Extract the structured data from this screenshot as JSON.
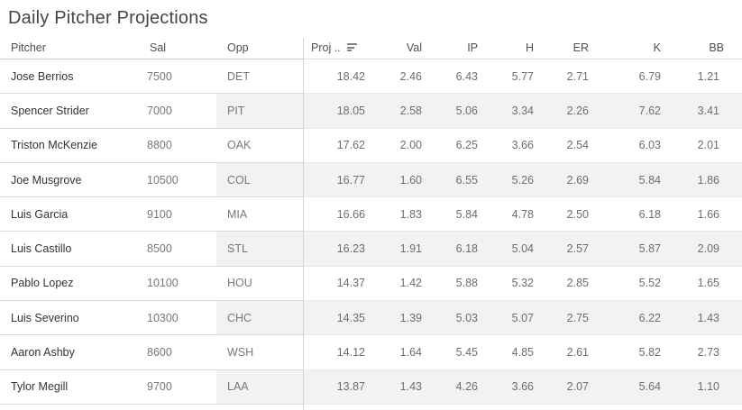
{
  "title": "Daily Pitcher Projections",
  "table": {
    "columns": [
      {
        "key": "pitcher",
        "label": "Pitcher"
      },
      {
        "key": "sal",
        "label": "Sal"
      },
      {
        "key": "opp",
        "label": "Opp"
      },
      {
        "key": "proj",
        "label": "Proj ..",
        "sorted": "descending"
      },
      {
        "key": "val",
        "label": "Val"
      },
      {
        "key": "ip",
        "label": "IP"
      },
      {
        "key": "h",
        "label": "H"
      },
      {
        "key": "er",
        "label": "ER"
      },
      {
        "key": "k",
        "label": "K"
      },
      {
        "key": "bb",
        "label": "BB"
      }
    ],
    "rows": [
      {
        "pitcher": "Jose Berrios",
        "sal": "7500",
        "opp": "DET",
        "proj": "18.42",
        "val": "2.46",
        "ip": "6.43",
        "h": "5.77",
        "er": "2.71",
        "k": "6.79",
        "bb": "1.21"
      },
      {
        "pitcher": "Spencer Strider",
        "sal": "7000",
        "opp": "PIT",
        "proj": "18.05",
        "val": "2.58",
        "ip": "5.06",
        "h": "3.34",
        "er": "2.26",
        "k": "7.62",
        "bb": "3.41"
      },
      {
        "pitcher": "Triston McKenzie",
        "sal": "8800",
        "opp": "OAK",
        "proj": "17.62",
        "val": "2.00",
        "ip": "6.25",
        "h": "3.66",
        "er": "2.54",
        "k": "6.03",
        "bb": "2.01"
      },
      {
        "pitcher": "Joe Musgrove",
        "sal": "10500",
        "opp": "COL",
        "proj": "16.77",
        "val": "1.60",
        "ip": "6.55",
        "h": "5.26",
        "er": "2.69",
        "k": "5.84",
        "bb": "1.86"
      },
      {
        "pitcher": "Luis Garcia",
        "sal": "9100",
        "opp": "MIA",
        "proj": "16.66",
        "val": "1.83",
        "ip": "5.84",
        "h": "4.78",
        "er": "2.50",
        "k": "6.18",
        "bb": "1.66"
      },
      {
        "pitcher": "Luis Castillo",
        "sal": "8500",
        "opp": "STL",
        "proj": "16.23",
        "val": "1.91",
        "ip": "6.18",
        "h": "5.04",
        "er": "2.57",
        "k": "5.87",
        "bb": "2.09"
      },
      {
        "pitcher": "Pablo Lopez",
        "sal": "10100",
        "opp": "HOU",
        "proj": "14.37",
        "val": "1.42",
        "ip": "5.88",
        "h": "5.32",
        "er": "2.85",
        "k": "5.52",
        "bb": "1.65"
      },
      {
        "pitcher": "Luis Severino",
        "sal": "10300",
        "opp": "CHC",
        "proj": "14.35",
        "val": "1.39",
        "ip": "5.03",
        "h": "5.07",
        "er": "2.75",
        "k": "6.22",
        "bb": "1.43"
      },
      {
        "pitcher": "Aaron Ashby",
        "sal": "8600",
        "opp": "WSH",
        "proj": "14.12",
        "val": "1.64",
        "ip": "5.45",
        "h": "4.85",
        "er": "2.61",
        "k": "5.82",
        "bb": "2.73"
      },
      {
        "pitcher": "Tylor Megill",
        "sal": "9700",
        "opp": "LAA",
        "proj": "13.87",
        "val": "1.43",
        "ip": "4.26",
        "h": "3.66",
        "er": "2.07",
        "k": "5.64",
        "bb": "1.10"
      }
    ]
  },
  "icons": {
    "proj_sort": "sort-descending-icon"
  },
  "colors": {
    "row_band": "#f2f2f2",
    "pane_divider": "#d3d3d3",
    "title_text": "#454545",
    "header_text": "#4f4f4f",
    "primary_text": "#333333",
    "secondary_text": "#787878",
    "value_text": "#6e6e6e"
  }
}
